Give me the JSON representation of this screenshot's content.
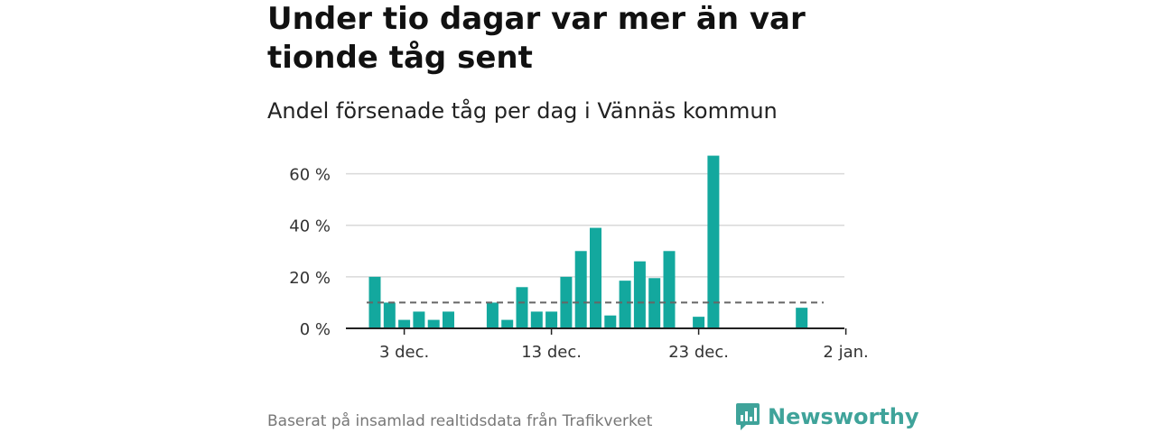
{
  "title": "Under tio dagar var mer än var tionde tåg sent",
  "subtitle": "Andel försenade tåg per dag i Vännäs kommun",
  "source": "Baserat på insamlad realtidsdata från Trafikverket",
  "brand": {
    "name": "Newsworthy",
    "logo_icon": "bar-chart-speech-bubble-icon"
  },
  "colors": {
    "bar": "#13a89e",
    "grid": "#d9d9d9",
    "reference_line": "#666666",
    "brand": "#3fa39a"
  },
  "chart_data": {
    "type": "bar",
    "x_unit": "date",
    "x": [
      "2023-12-01",
      "2023-12-02",
      "2023-12-03",
      "2023-12-04",
      "2023-12-05",
      "2023-12-06",
      "2023-12-07",
      "2023-12-08",
      "2023-12-09",
      "2023-12-10",
      "2023-12-11",
      "2023-12-12",
      "2023-12-13",
      "2023-12-14",
      "2023-12-15",
      "2023-12-16",
      "2023-12-17",
      "2023-12-18",
      "2023-12-19",
      "2023-12-20",
      "2023-12-21",
      "2023-12-22",
      "2023-12-23",
      "2023-12-24",
      "2023-12-25",
      "2023-12-26",
      "2023-12-27",
      "2023-12-28",
      "2023-12-29",
      "2023-12-30",
      "2023-12-31"
    ],
    "values": [
      20,
      10,
      3.3,
      6.5,
      3.3,
      6.5,
      null,
      null,
      10,
      3.3,
      16,
      6.5,
      6.5,
      20,
      30,
      39,
      5,
      18.5,
      26,
      19.5,
      30,
      null,
      4.5,
      67,
      null,
      null,
      null,
      null,
      null,
      8,
      null
    ],
    "ylim": [
      0,
      70
    ],
    "yticks": [
      0,
      20,
      40,
      60
    ],
    "ytick_labels": [
      "0 %",
      "20 %",
      "40 %",
      "60 %"
    ],
    "xticks": [
      "2023-12-03",
      "2023-12-13",
      "2023-12-23",
      "2024-01-02"
    ],
    "xtick_labels": [
      "3 dec.",
      "13 dec.",
      "23 dec.",
      "2 jan."
    ],
    "reference_line": 10,
    "grid": true,
    "legend": "none",
    "xlabel": "",
    "ylabel": ""
  }
}
